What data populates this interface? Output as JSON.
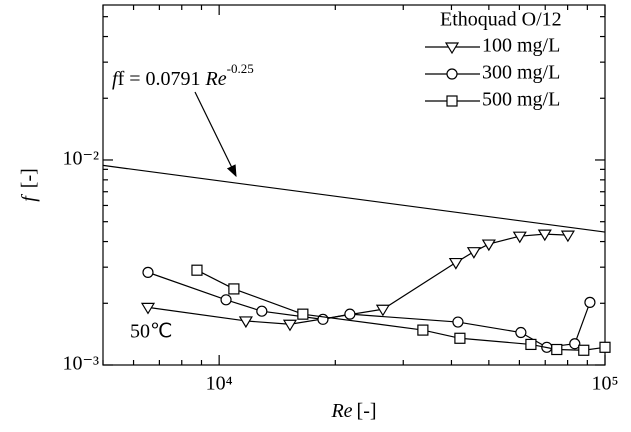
{
  "chart_data": {
    "type": "scatter-line",
    "xscale": "log",
    "yscale": "log",
    "xlim": [
      5000,
      100000
    ],
    "ylim": [
      0.001,
      0.057
    ],
    "xticks": [
      {
        "value": 10000,
        "label": "10⁴"
      },
      {
        "value": 100000,
        "label": "10⁵"
      }
    ],
    "yticks": [
      {
        "value": 0.001,
        "label": "10⁻³"
      },
      {
        "value": 0.01,
        "label": "10⁻²"
      }
    ],
    "xminor": [
      5000,
      6000,
      7000,
      8000,
      9000,
      20000,
      30000,
      40000,
      50000,
      60000,
      70000,
      80000,
      90000
    ],
    "yminor": [
      0.002,
      0.003,
      0.004,
      0.005,
      0.006,
      0.007,
      0.008,
      0.009,
      0.02,
      0.03,
      0.04,
      0.05
    ],
    "xlabel": {
      "symbol": "Re",
      "unit": "[-]"
    },
    "ylabel": {
      "symbol": "f",
      "unit": "[-]"
    },
    "legend_title": "Ethoquad O/12",
    "legend": "upper right",
    "condition": "50℃",
    "reference": {
      "text": "f = 0.0791 ",
      "symbol": "Re",
      "exponent": "-0.25",
      "x": [
        5000,
        100000
      ],
      "values": [
        0.00941,
        0.00445
      ]
    },
    "series": [
      {
        "name": "100 mg/L",
        "marker": "triangle-down",
        "color": "#000000",
        "x": [
          6540,
          11730,
          15260,
          26570,
          41070,
          45730,
          50000,
          60140,
          69820,
          80140
        ],
        "values": [
          0.00191,
          0.00164,
          0.00158,
          0.00187,
          0.00316,
          0.00357,
          0.00389,
          0.00425,
          0.00435,
          0.0043
        ]
      },
      {
        "name": "300 mg/L",
        "marker": "circle",
        "color": "#000000",
        "x": [
          6540,
          10420,
          12900,
          18580,
          21820,
          41580,
          60530,
          70650,
          83500,
          91400
        ],
        "values": [
          0.00283,
          0.00208,
          0.00183,
          0.00167,
          0.00177,
          0.00162,
          0.00144,
          0.00122,
          0.00127,
          0.00202
        ]
      },
      {
        "name": "500 mg/L",
        "marker": "square",
        "color": "#000000",
        "x": [
          8760,
          10920,
          16480,
          33730,
          42070,
          64270,
          75000,
          88100,
          100000
        ],
        "values": [
          0.0029,
          0.00235,
          0.00177,
          0.00148,
          0.00135,
          0.00126,
          0.00119,
          0.00118,
          0.00122
        ]
      }
    ]
  }
}
